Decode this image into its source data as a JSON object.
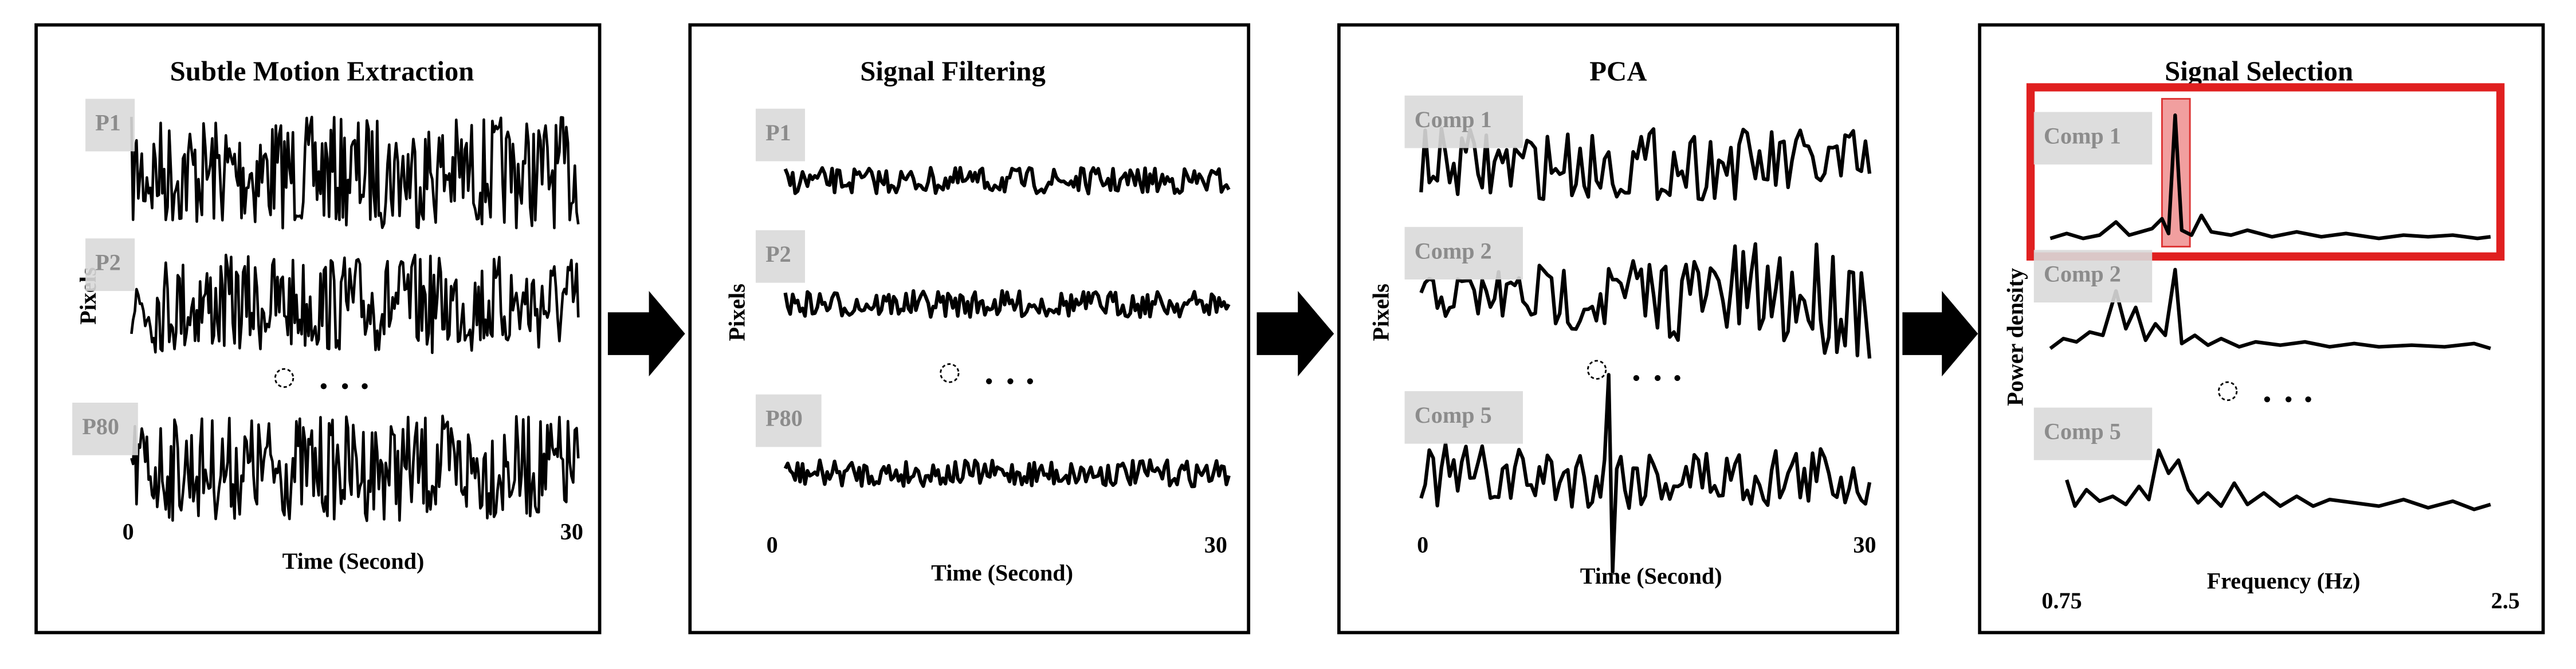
{
  "panels": [
    {
      "title": "Subtle Motion Extraction",
      "y_label": "Pixels",
      "x_label": "Time (Second)",
      "x_ticks": [
        "0",
        "30"
      ],
      "rows": [
        {
          "label": "P1"
        },
        {
          "label": "P2"
        },
        {
          "label": "P80"
        }
      ]
    },
    {
      "title": "Signal Filtering",
      "y_label": "Pixels",
      "x_label": "Time (Second)",
      "x_ticks": [
        "0",
        "30"
      ],
      "rows": [
        {
          "label": "P1"
        },
        {
          "label": "P2"
        },
        {
          "label": "P80"
        }
      ]
    },
    {
      "title": "PCA",
      "y_label": "Pixels",
      "x_label": "Time (Second)",
      "x_ticks": [
        "0",
        "30"
      ],
      "rows": [
        {
          "label": "Comp 1"
        },
        {
          "label": "Comp 2"
        },
        {
          "label": "Comp 5"
        }
      ]
    },
    {
      "title": "Signal Selection",
      "y_label": "Power density",
      "x_label": "Frequency (Hz)",
      "x_ticks": [
        "0.75",
        "2.5"
      ],
      "rows": [
        {
          "label": "Comp 1"
        },
        {
          "label": "Comp 2"
        },
        {
          "label": "Comp 5"
        }
      ]
    }
  ]
}
